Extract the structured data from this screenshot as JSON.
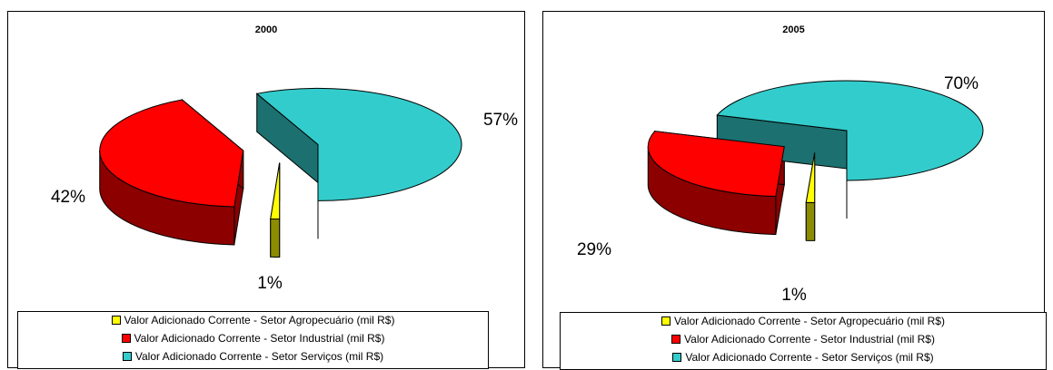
{
  "chart_data": [
    {
      "type": "pie",
      "title": "2000",
      "categories": [
        "Valor Adicionado Corrente - Setor Agropecuário (mil R$)",
        "Valor Adicionado Corrente - Setor Industrial (mil R$)",
        "Valor Adicionado Corrente - Setor Serviços (mil R$)"
      ],
      "values": [
        1,
        42,
        57
      ],
      "data_labels": [
        "1%",
        "42%",
        "57%"
      ],
      "colors": [
        "#ffff00",
        "#ff0000",
        "#33cccc"
      ],
      "style": "3d-exploded",
      "legend_position": "bottom"
    },
    {
      "type": "pie",
      "title": "2005",
      "categories": [
        "Valor Adicionado Corrente - Setor Agropecuário (mil R$)",
        "Valor Adicionado Corrente - Setor Industrial (mil R$)",
        "Valor Adicionado Corrente - Setor Serviços (mil R$)"
      ],
      "values": [
        1,
        29,
        70
      ],
      "data_labels": [
        "1%",
        "29%",
        "70%"
      ],
      "colors": [
        "#ffff00",
        "#ff0000",
        "#33cccc"
      ],
      "style": "3d-exploded",
      "legend_position": "bottom"
    }
  ]
}
